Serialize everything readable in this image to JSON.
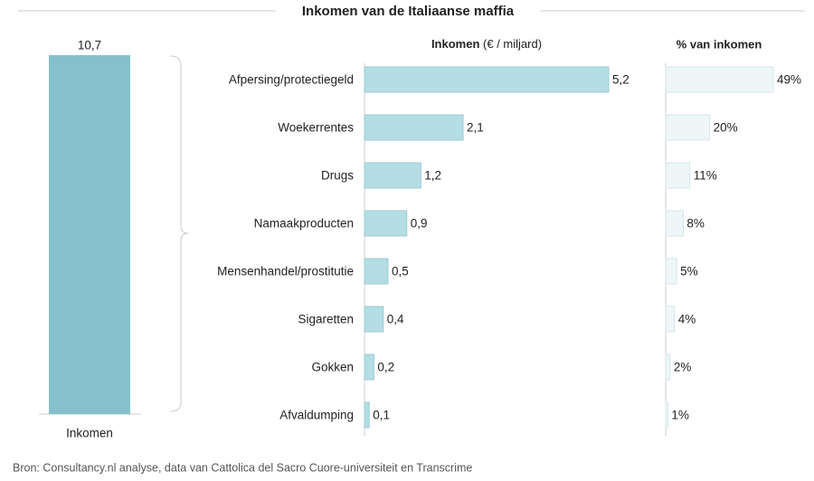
{
  "title": "Inkomen van de Italiaanse maffia",
  "source": "Bron: Consultancy.nl analyse, data van Cattolica del Sacro Cuore-universiteit en Transcrime",
  "chart_data": [
    {
      "type": "bar",
      "categories": [
        "Inkomen"
      ],
      "values": [
        10.7
      ],
      "value_labels": [
        "10,7"
      ],
      "color": "#86c1cb"
    },
    {
      "type": "hbar",
      "title": "Inkomen",
      "subtitle": "(€ / miljard)",
      "categories": [
        "Afpersing/protectiegeld",
        "Woekerrentes",
        "Drugs",
        "Namaakproducten",
        "Mensenhandel/prostitutie",
        "Sigaretten",
        "Gokken",
        "Afvaldumping"
      ],
      "values": [
        5.2,
        2.1,
        1.2,
        0.9,
        0.5,
        0.4,
        0.2,
        0.1
      ],
      "value_labels": [
        "5,2",
        "2,1",
        "1,2",
        "0,9",
        "0,5",
        "0,4",
        "0,2",
        "0,1"
      ],
      "color": "#b5dde4"
    },
    {
      "type": "hbar",
      "title": "% van inkomen",
      "values": [
        49,
        20,
        11,
        8,
        5,
        4,
        2,
        1
      ],
      "value_labels": [
        "49%",
        "20%",
        "11%",
        "8%",
        "5%",
        "4%",
        "2%",
        "1%"
      ],
      "color": "#eef6f7"
    }
  ]
}
